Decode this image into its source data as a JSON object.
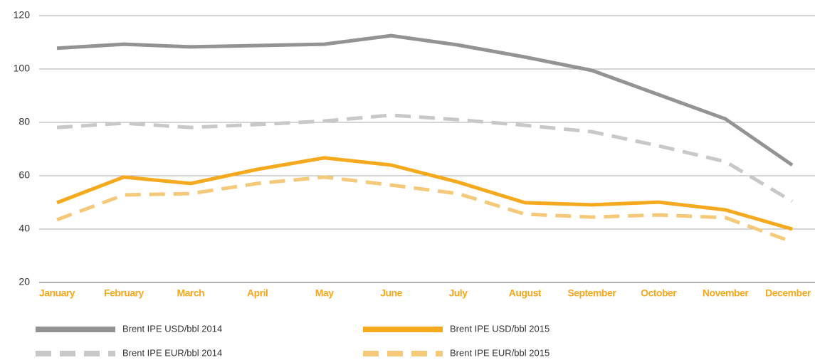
{
  "chart_data": {
    "type": "line",
    "categories": [
      "January",
      "February",
      "March",
      "April",
      "May",
      "June",
      "July",
      "August",
      "September",
      "October",
      "November",
      "December"
    ],
    "series": [
      {
        "name": "Brent IPE USD/bbl 2014",
        "color": "#939393",
        "dash": false,
        "values": [
          107.8,
          109.3,
          108.3,
          108.8,
          109.3,
          112.5,
          109,
          104.5,
          99.5,
          90.4,
          81.3,
          64
        ]
      },
      {
        "name": "Brent IPE USD/bbl 2015",
        "color": "#f5a91f",
        "dash": false,
        "values": [
          49.9,
          59.5,
          57.1,
          62.4,
          66.7,
          64,
          57.6,
          49.9,
          49.1,
          50.1,
          47.2,
          40
        ]
      },
      {
        "name": "Brent IPE EUR/bbl 2014",
        "color": "#c8c8c8",
        "dash": true,
        "values": [
          78.1,
          79.7,
          78.1,
          79.2,
          80.5,
          82.7,
          81,
          78.9,
          76.5,
          71.2,
          65.3,
          50.4
        ]
      },
      {
        "name": "Brent IPE EUR/bbl 2015",
        "color": "#f5c97a",
        "dash": true,
        "values": [
          43.5,
          52.8,
          53.3,
          57.1,
          59.5,
          56.5,
          53.3,
          45.6,
          44.5,
          45.3,
          44.3,
          35.2
        ]
      }
    ],
    "ylim": [
      20,
      120
    ],
    "yticks": [
      20,
      40,
      60,
      80,
      100,
      120
    ],
    "grid": true,
    "legend": "bottom"
  }
}
